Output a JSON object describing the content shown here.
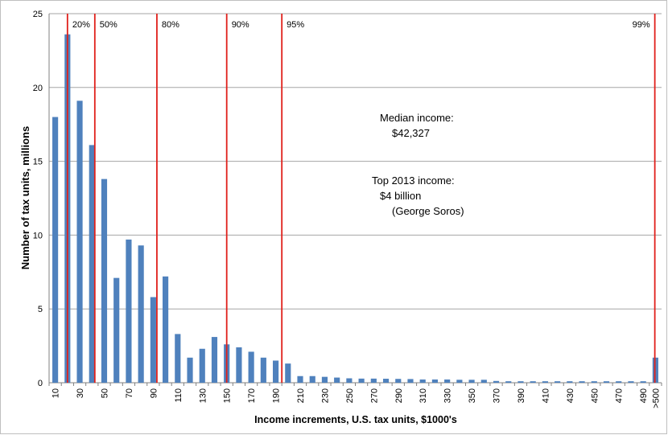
{
  "chart_data": {
    "type": "bar",
    "xlabel": "Income increments, U.S. tax units, $1000's",
    "ylabel": "Number of tax units, millions",
    "ylim": [
      0,
      25
    ],
    "yticks": [
      0,
      5,
      10,
      15,
      20,
      25
    ],
    "grid": true,
    "bar_color": "#4f81bd",
    "marker_color": "#e0201b",
    "categories": [
      "10",
      "20",
      "30",
      "40",
      "50",
      "60",
      "70",
      "80",
      "90",
      "100",
      "110",
      "120",
      "130",
      "140",
      "150",
      "160",
      "170",
      "180",
      "190",
      "200",
      "210",
      "220",
      "230",
      "240",
      "250",
      "260",
      "270",
      "280",
      "290",
      "300",
      "310",
      "320",
      "330",
      "340",
      "350",
      "360",
      "370",
      "380",
      "390",
      "400",
      "410",
      "420",
      "430",
      "440",
      "450",
      "460",
      "470",
      "480",
      "490",
      ">500"
    ],
    "xtick_labels": [
      "10",
      "",
      "30",
      "",
      "50",
      "",
      "70",
      "",
      "90",
      "",
      "110",
      "",
      "130",
      "",
      "150",
      "",
      "170",
      "",
      "190",
      "",
      "210",
      "",
      "230",
      "",
      "250",
      "",
      "270",
      "",
      "290",
      "",
      "310",
      "",
      "330",
      "",
      "350",
      "",
      "370",
      "",
      "390",
      "",
      "410",
      "",
      "430",
      "",
      "450",
      "",
      "470",
      "",
      "490",
      ">500"
    ],
    "values": [
      18.0,
      23.6,
      19.1,
      16.1,
      13.8,
      7.1,
      9.7,
      9.3,
      5.8,
      7.2,
      3.3,
      1.7,
      2.3,
      3.1,
      2.6,
      2.4,
      2.1,
      1.7,
      1.5,
      1.3,
      0.45,
      0.45,
      0.4,
      0.35,
      0.3,
      0.28,
      0.28,
      0.27,
      0.26,
      0.25,
      0.22,
      0.22,
      0.22,
      0.2,
      0.2,
      0.2,
      0.12,
      0.1,
      0.1,
      0.1,
      0.1,
      0.1,
      0.1,
      0.1,
      0.1,
      0.1,
      0.1,
      0.1,
      0.1,
      1.7
    ],
    "percentile_lines": [
      {
        "label": "20%",
        "x": 20
      },
      {
        "label": "50%",
        "x": 42.327
      },
      {
        "label": "80%",
        "x": 93
      },
      {
        "label": "90%",
        "x": 150
      },
      {
        "label": "95%",
        "x": 195
      },
      {
        "label": "99%",
        "x": 500
      }
    ],
    "annotations": {
      "median_line1": "Median income:",
      "median_line2": "$42,327",
      "top_line1": "Top 2013 income:",
      "top_line2": "$4 billion",
      "top_line3": "(George Soros)"
    }
  }
}
